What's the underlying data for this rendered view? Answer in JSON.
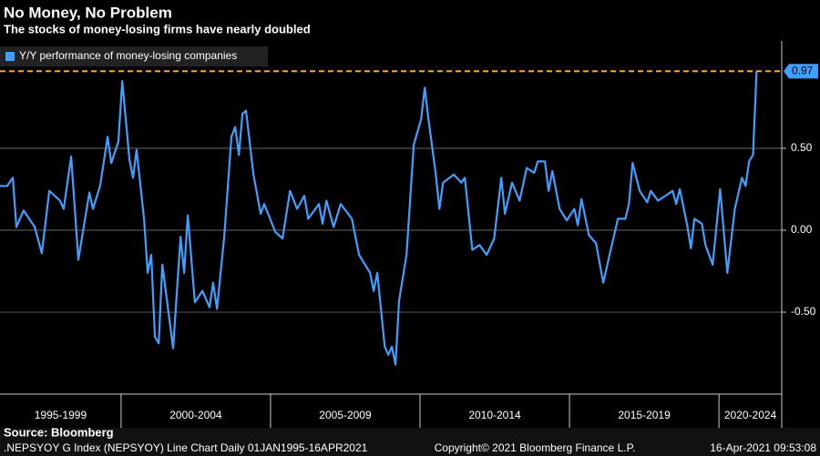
{
  "chart_data": {
    "type": "line",
    "title": "No Money, No Problem",
    "subtitle": "The stocks of money-losing firms have nearly doubled",
    "source": "Source: Bloomberg",
    "footer_left": ".NEPSYOY G Index (NEPSYOY) Line Chart  Daily 01JAN1995-16APR2021",
    "footer_center": "Copyright© 2021 Bloomberg Finance L.P.",
    "footer_right": "16-Apr-2021 09:53:08",
    "periods": [
      "1995-1999",
      "2000-2004",
      "2005-2009",
      "2010-2014",
      "2015-2019",
      "2020-2024"
    ],
    "xlim": [
      1995.95,
      2022.1
    ],
    "xticks": [
      2000,
      2005,
      2010,
      2015,
      2020
    ],
    "ylim": [
      -1.0,
      1.155
    ],
    "yticks": [
      {
        "value": -0.5,
        "label": "-0.50"
      },
      {
        "value": 0,
        "label": "0.00"
      },
      {
        "value": 0.5,
        "label": "0.50"
      }
    ],
    "grid": true,
    "last_value_line": true,
    "last_value_color": "#f7a540",
    "series": [
      {
        "name": "Y/Y performance of money-losing companies",
        "color": "#3fa0ff",
        "x": [
          1995.95,
          1996.19,
          1996.38,
          1996.5,
          1996.74,
          1997.11,
          1997.35,
          1997.6,
          1997.96,
          1998.08,
          1998.33,
          1998.57,
          1998.94,
          1999.06,
          1999.3,
          1999.55,
          1999.67,
          1999.91,
          2000.04,
          2000.28,
          2000.4,
          2000.52,
          2000.77,
          2000.89,
          2001.01,
          2001.13,
          2001.26,
          2001.38,
          2001.74,
          2001.99,
          2002.11,
          2002.23,
          2002.47,
          2002.72,
          2002.96,
          2003.08,
          2003.21,
          2003.45,
          2003.69,
          2003.82,
          2003.94,
          2004.06,
          2004.18,
          2004.43,
          2004.67,
          2004.79,
          2005.16,
          2005.4,
          2005.65,
          2005.89,
          2006.13,
          2006.26,
          2006.62,
          2006.74,
          2006.87,
          2007.11,
          2007.35,
          2007.72,
          2007.96,
          2008.33,
          2008.45,
          2008.57,
          2008.82,
          2008.94,
          2009.06,
          2009.18,
          2009.3,
          2009.55,
          2009.79,
          2010.04,
          2010.16,
          2010.28,
          2010.52,
          2010.65,
          2010.77,
          2011.13,
          2011.38,
          2011.5,
          2011.75,
          2011.99,
          2012.23,
          2012.48,
          2012.72,
          2012.84,
          2013.08,
          2013.33,
          2013.57,
          2013.82,
          2013.94,
          2014.18,
          2014.3,
          2014.43,
          2014.67,
          2014.91,
          2015.16,
          2015.28,
          2015.4,
          2015.65,
          2015.89,
          2016.13,
          2016.38,
          2016.62,
          2016.87,
          2016.99,
          2017.11,
          2017.35,
          2017.6,
          2017.72,
          2017.96,
          2018.21,
          2018.45,
          2018.57,
          2018.69,
          2018.94,
          2019.06,
          2019.18,
          2019.43,
          2019.55,
          2019.79,
          2020.04,
          2020.28,
          2020.53,
          2020.77,
          2020.89,
          2021.01,
          2021.14,
          2021.26
        ],
        "values": [
          0.27,
          0.27,
          0.32,
          0.02,
          0.12,
          0.02,
          -0.14,
          0.24,
          0.18,
          0.13,
          0.45,
          -0.18,
          0.23,
          0.13,
          0.27,
          0.57,
          0.41,
          0.54,
          0.91,
          0.43,
          0.32,
          0.49,
          0.07,
          -0.26,
          -0.15,
          -0.65,
          -0.69,
          -0.21,
          -0.72,
          -0.04,
          -0.26,
          0.09,
          -0.44,
          -0.37,
          -0.47,
          -0.32,
          -0.48,
          -0.04,
          0.57,
          0.63,
          0.46,
          0.71,
          0.73,
          0.34,
          0.1,
          0.16,
          -0.01,
          -0.05,
          0.24,
          0.13,
          0.21,
          0.07,
          0.16,
          0.04,
          0.18,
          0.02,
          0.16,
          0.07,
          -0.15,
          -0.26,
          -0.37,
          -0.26,
          -0.71,
          -0.76,
          -0.71,
          -0.82,
          -0.43,
          -0.15,
          0.52,
          0.68,
          0.87,
          0.68,
          0.35,
          0.13,
          0.29,
          0.34,
          0.29,
          0.32,
          -0.12,
          -0.09,
          -0.15,
          -0.05,
          0.32,
          0.1,
          0.29,
          0.18,
          0.38,
          0.35,
          0.42,
          0.42,
          0.24,
          0.36,
          0.13,
          0.06,
          0.13,
          0.03,
          0.19,
          -0.03,
          -0.08,
          -0.32,
          -0.12,
          0.07,
          0.07,
          0.16,
          0.41,
          0.24,
          0.17,
          0.24,
          0.18,
          0.21,
          0.24,
          0.16,
          0.25,
          0.03,
          -0.11,
          0.07,
          0.04,
          -0.09,
          -0.21,
          0.25,
          -0.26,
          0.13,
          0.32,
          0.27,
          0.42,
          0.46,
          0.97
        ]
      }
    ]
  }
}
